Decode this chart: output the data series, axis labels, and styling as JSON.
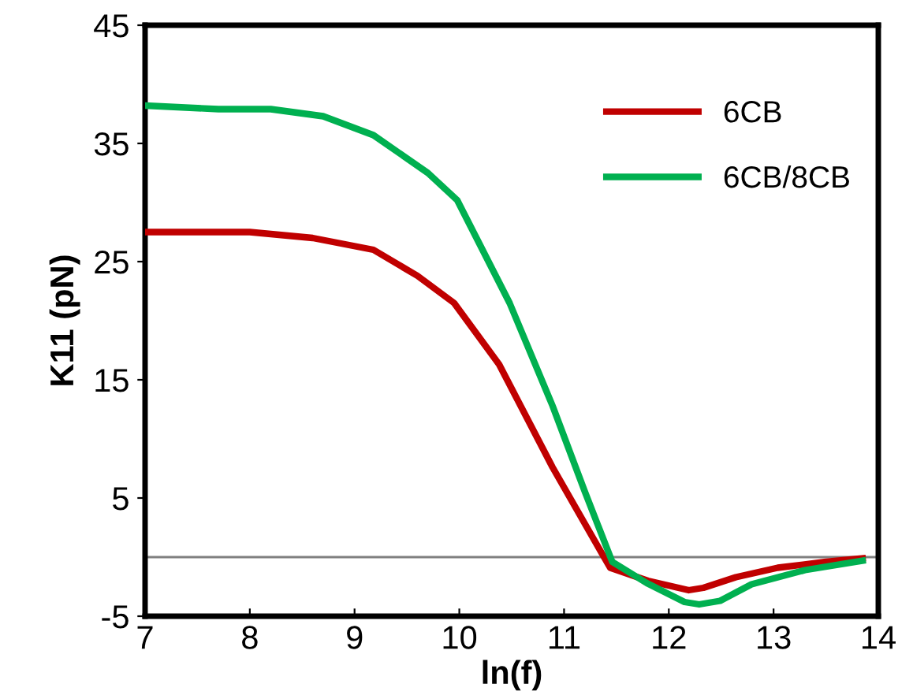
{
  "chart_data": {
    "type": "line",
    "xlabel": "ln(f)",
    "ylabel": "K11 (pN)",
    "xlim": [
      7,
      14
    ],
    "xticks": [
      7,
      8,
      9,
      10,
      11,
      12,
      13,
      14
    ],
    "ylim": [
      -5,
      45
    ],
    "yticks": [
      -5,
      5,
      15,
      25,
      35,
      45
    ],
    "legend": "top right",
    "grid": false,
    "marker": "none",
    "line_style": "solid",
    "ref_lines": [
      {
        "axis": "y",
        "value": 0,
        "color": "#808080"
      }
    ],
    "series": [
      {
        "name": "6CB",
        "color": "#c00000",
        "x": [
          7,
          8,
          8.6,
          9.18,
          9.6,
          9.95,
          10.38,
          10.89,
          11.2,
          11.44,
          11.8,
          12.19,
          12.33,
          12.64,
          13.04,
          13.5,
          13.85
        ],
        "values": [
          27.5,
          27.5,
          27,
          26,
          23.8,
          21.5,
          16.3,
          7.6,
          2.8,
          -0.9,
          -2.0,
          -2.8,
          -2.6,
          -1.7,
          -0.9,
          -0.4,
          -0.1
        ]
      },
      {
        "name": "6CB/8CB",
        "color": "#00b050",
        "x": [
          7,
          7.7,
          8.2,
          8.7,
          9.18,
          9.7,
          9.98,
          10.48,
          10.89,
          11.2,
          11.46,
          11.79,
          12.15,
          12.29,
          12.49,
          12.79,
          13.3,
          13.85
        ],
        "values": [
          38.2,
          37.9,
          37.9,
          37.3,
          35.7,
          32.5,
          30.2,
          21.5,
          12.8,
          5.5,
          -0.4,
          -2.2,
          -3.8,
          -4.0,
          -3.7,
          -2.3,
          -1.1,
          -0.3
        ]
      }
    ]
  }
}
